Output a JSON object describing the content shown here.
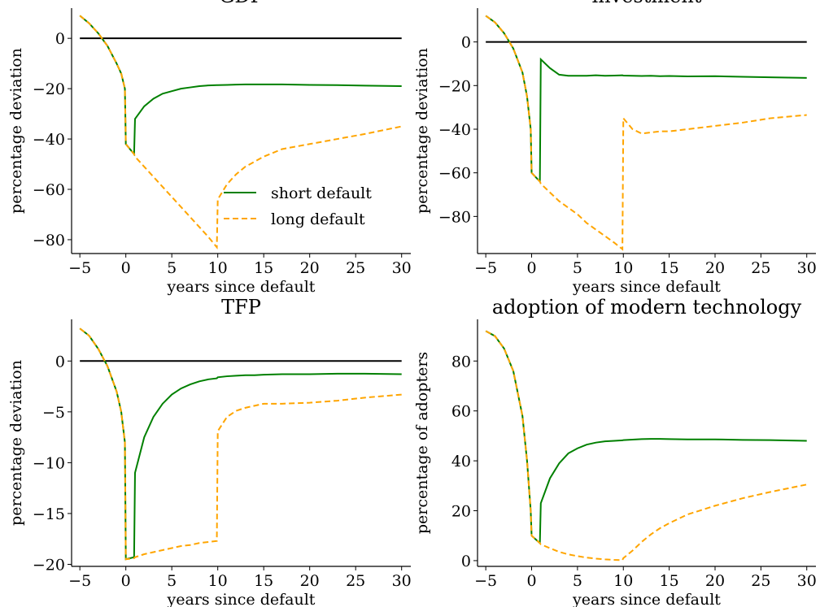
{
  "chart_data": [
    {
      "type": "line",
      "title": "GDP",
      "xlabel": "years since default",
      "ylabel": "percentage deviation",
      "x": [
        -5,
        -4,
        -3,
        -2,
        -1,
        -0.5,
        -0.1,
        0,
        0.9,
        1,
        2,
        3,
        4,
        5,
        6,
        7,
        8,
        9,
        9.9,
        10,
        11,
        12,
        13,
        14,
        15,
        17,
        20,
        23,
        26,
        30
      ],
      "series": [
        {
          "name": "short default",
          "color": "#008000",
          "dash": false,
          "values": [
            9,
            6,
            2,
            -3,
            -10,
            -14,
            -20,
            -42,
            -46,
            -32,
            -27,
            -24,
            -22,
            -21,
            -20,
            -19.5,
            -19,
            -18.7,
            -18.6,
            -18.6,
            -18.5,
            -18.4,
            -18.3,
            -18.3,
            -18.3,
            -18.3,
            -18.5,
            -18.6,
            -18.8,
            -19
          ]
        },
        {
          "name": "long default",
          "color": "#ffa500",
          "dash": true,
          "values": [
            9,
            6,
            2,
            -3,
            -10,
            -14,
            -20,
            -42,
            -46,
            -47,
            -51,
            -55,
            -59,
            -63,
            -67,
            -71,
            -75,
            -79,
            -83,
            -64,
            -58,
            -54,
            -51,
            -49,
            -47,
            -44,
            -42,
            -40,
            -38,
            -35
          ]
        }
      ],
      "hline": 0,
      "legend": "lower right",
      "xlim": [
        -5.9,
        31
      ],
      "ylim": [
        -85.5,
        12
      ],
      "xticks": [
        {
          "value": -5,
          "label": "−5"
        },
        0,
        5,
        10,
        15,
        20,
        25,
        30
      ],
      "yticks": [
        0,
        {
          "value": -20,
          "label": "−20"
        },
        {
          "value": -40,
          "label": "−40"
        },
        {
          "value": -60,
          "label": "−60"
        },
        {
          "value": -80,
          "label": "−80"
        }
      ]
    },
    {
      "type": "line",
      "title": "investment",
      "xlabel": "years since default",
      "ylabel": "percentage deviation",
      "x": [
        -5,
        -4,
        -3,
        -2,
        -1,
        -0.5,
        -0.1,
        0,
        0.9,
        1,
        2,
        3,
        4,
        5,
        6,
        7,
        8,
        9,
        9.9,
        10,
        11,
        12,
        13,
        14,
        15,
        17,
        20,
        23,
        26,
        30
      ],
      "series": [
        {
          "color": "#008000",
          "dash": false,
          "values": [
            12,
            9,
            4,
            -3,
            -14,
            -25,
            -40,
            -60,
            -64,
            -8,
            -12,
            -15,
            -15.5,
            -15.5,
            -15.5,
            -15.3,
            -15.5,
            -15.4,
            -15.3,
            -15.4,
            -15.5,
            -15.6,
            -15.5,
            -15.7,
            -15.6,
            -15.8,
            -15.7,
            -16,
            -16.2,
            -16.5
          ]
        },
        {
          "color": "#ffa500",
          "dash": true,
          "values": [
            12,
            9,
            4,
            -3,
            -14,
            -25,
            -40,
            -60,
            -64,
            -65,
            -69,
            -73,
            -76,
            -79,
            -83,
            -86,
            -89,
            -92,
            -95,
            -35,
            -40,
            -42,
            -41.5,
            -41,
            -41,
            -40,
            -38.5,
            -37,
            -35,
            -33.5
          ]
        }
      ],
      "hline": 0,
      "xlim": [
        -5.9,
        31
      ],
      "ylim": [
        -97,
        15.5
      ],
      "xticks": [
        {
          "value": -5,
          "label": "−5"
        },
        0,
        5,
        10,
        15,
        20,
        25,
        30
      ],
      "yticks": [
        0,
        {
          "value": -20,
          "label": "−20"
        },
        {
          "value": -40,
          "label": "−40"
        },
        {
          "value": -60,
          "label": "−60"
        },
        {
          "value": -80,
          "label": "−80"
        }
      ]
    },
    {
      "type": "line",
      "title": "TFP",
      "xlabel": "years since default",
      "ylabel": "percentage deviation",
      "x": [
        -5,
        -4,
        -3,
        -2,
        -1,
        -0.5,
        -0.1,
        0,
        0.9,
        1,
        2,
        3,
        4,
        5,
        6,
        7,
        8,
        9,
        9.9,
        10,
        11,
        12,
        13,
        14,
        15,
        17,
        20,
        23,
        26,
        30
      ],
      "series": [
        {
          "color": "#008000",
          "dash": false,
          "values": [
            3.2,
            2.5,
            1.2,
            -0.5,
            -3,
            -5,
            -8,
            -19.5,
            -19.3,
            -11,
            -7.5,
            -5.5,
            -4.2,
            -3.3,
            -2.7,
            -2.3,
            -2,
            -1.8,
            -1.7,
            -1.6,
            -1.5,
            -1.45,
            -1.4,
            -1.4,
            -1.35,
            -1.3,
            -1.3,
            -1.25,
            -1.25,
            -1.3
          ]
        },
        {
          "color": "#ffa500",
          "dash": true,
          "values": [
            3.2,
            2.5,
            1.2,
            -0.5,
            -3,
            -5,
            -8,
            -19.5,
            -19.4,
            -19.3,
            -19,
            -18.8,
            -18.6,
            -18.4,
            -18.2,
            -18.1,
            -17.9,
            -17.8,
            -17.7,
            -6.9,
            -5.5,
            -4.9,
            -4.6,
            -4.4,
            -4.2,
            -4.2,
            -4.1,
            -3.9,
            -3.6,
            -3.3
          ]
        }
      ],
      "hline": 0,
      "xlim": [
        -5.9,
        31
      ],
      "ylim": [
        -20.2,
        4.1
      ],
      "xticks": [
        {
          "value": -5,
          "label": "−5"
        },
        0,
        5,
        10,
        15,
        20,
        25,
        30
      ],
      "yticks": [
        0,
        {
          "value": -5,
          "label": "−5"
        },
        {
          "value": -10,
          "label": "−10"
        },
        {
          "value": -15,
          "label": "−15"
        },
        {
          "value": -20,
          "label": "−20"
        }
      ]
    },
    {
      "type": "line",
      "title": "adoption of modern technology",
      "xlabel": "years since default",
      "ylabel": "percentage of adopters",
      "x": [
        -5,
        -4,
        -3,
        -2,
        -1,
        -0.5,
        -0.1,
        0,
        0.9,
        1,
        2,
        3,
        4,
        5,
        6,
        7,
        8,
        9,
        9.9,
        10,
        11,
        12,
        13,
        14,
        15,
        17,
        20,
        23,
        26,
        30
      ],
      "series": [
        {
          "color": "#008000",
          "dash": false,
          "values": [
            92,
            90,
            85,
            76,
            58,
            40,
            20,
            10,
            7,
            23,
            33,
            39,
            43,
            45,
            46.5,
            47.3,
            47.8,
            48,
            48.2,
            48.3,
            48.5,
            48.7,
            48.8,
            48.8,
            48.7,
            48.6,
            48.6,
            48.4,
            48.3,
            48
          ]
        },
        {
          "color": "#ffa500",
          "dash": true,
          "values": [
            92,
            90,
            85,
            76,
            58,
            40,
            20,
            10,
            7,
            6.5,
            5,
            3.5,
            2.5,
            1.8,
            1.2,
            0.8,
            0.5,
            0.3,
            0.2,
            1,
            4,
            7.5,
            10.5,
            13,
            15,
            18.5,
            22,
            25,
            27.5,
            30.5
          ]
        }
      ],
      "xlim": [
        -5.9,
        31
      ],
      "ylim": [
        -2.3,
        96.7
      ],
      "xticks": [
        {
          "value": -5,
          "label": "−5"
        },
        0,
        5,
        10,
        15,
        20,
        25,
        30
      ],
      "yticks": [
        0,
        20,
        40,
        60,
        80
      ]
    }
  ]
}
